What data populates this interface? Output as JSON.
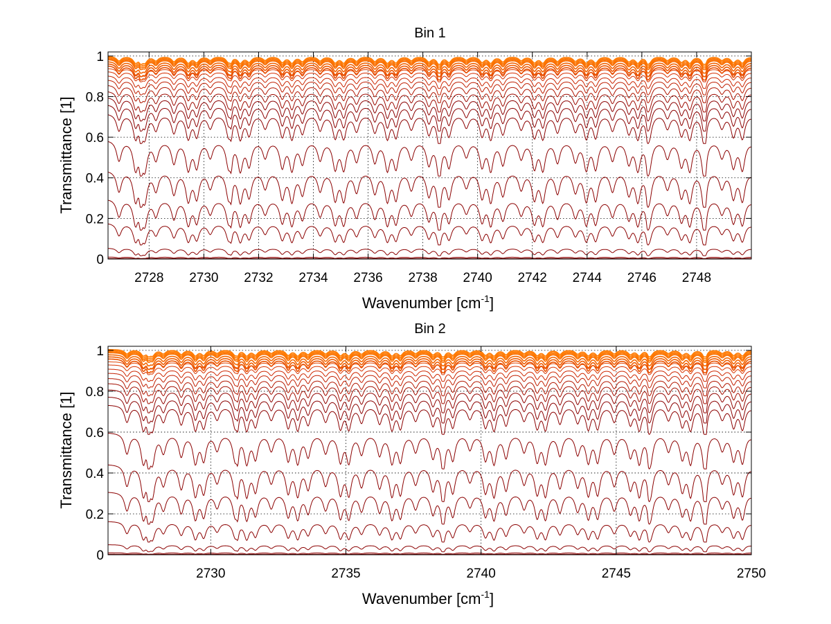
{
  "colors": {
    "deep": "#8B0000",
    "mid": "#D42A00",
    "bright": "#FF7A00",
    "grid": "#000000",
    "axes": "#000000"
  },
  "chart_data": [
    {
      "type": "line",
      "title": "Bin 1",
      "xlabel_main": "Wavenumber [cm",
      "xlabel_sup": "-1",
      "xlabel_end": "]",
      "ylabel": "Transmittance [1]",
      "xlim": [
        2726.5,
        2750
      ],
      "ylim": [
        0,
        1.02
      ],
      "xticks": [
        2728,
        2730,
        2732,
        2734,
        2736,
        2738,
        2740,
        2742,
        2744,
        2746,
        2748
      ],
      "yticks": [
        0,
        0.2,
        0.4,
        0.6,
        0.8,
        1
      ],
      "ytick_labels": [
        "0",
        "0.2",
        "0.4",
        "0.6",
        "0.8",
        "1"
      ],
      "grid": true,
      "series_baselines": [
        1.0,
        0.995,
        0.99,
        0.985,
        0.975,
        0.965,
        0.955,
        0.94,
        0.925,
        0.905,
        0.885,
        0.86,
        0.83,
        0.8,
        0.765,
        0.72,
        0.59,
        0.44,
        0.3,
        0.18,
        0.055,
        0.01,
        0.003
      ]
    },
    {
      "type": "line",
      "title": "Bin 2",
      "xlabel_main": "Wavenumber [cm",
      "xlabel_sup": "-1",
      "xlabel_end": "]",
      "ylabel": "Transmittance [1]",
      "xlim": [
        2726.2,
        2750
      ],
      "ylim": [
        0,
        1.02
      ],
      "xticks": [
        2730,
        2735,
        2740,
        2745,
        2750
      ],
      "yticks": [
        0,
        0.2,
        0.4,
        0.6,
        0.8,
        1
      ],
      "ytick_labels": [
        "0",
        "0.2",
        "0.4",
        "0.6",
        "0.8",
        "1"
      ],
      "grid": true,
      "series_baselines": [
        1.005,
        1.0,
        0.995,
        0.99,
        0.98,
        0.97,
        0.96,
        0.945,
        0.93,
        0.91,
        0.89,
        0.865,
        0.84,
        0.81,
        0.775,
        0.735,
        0.6,
        0.445,
        0.31,
        0.165,
        0.05,
        0.01,
        0.003
      ]
    }
  ]
}
